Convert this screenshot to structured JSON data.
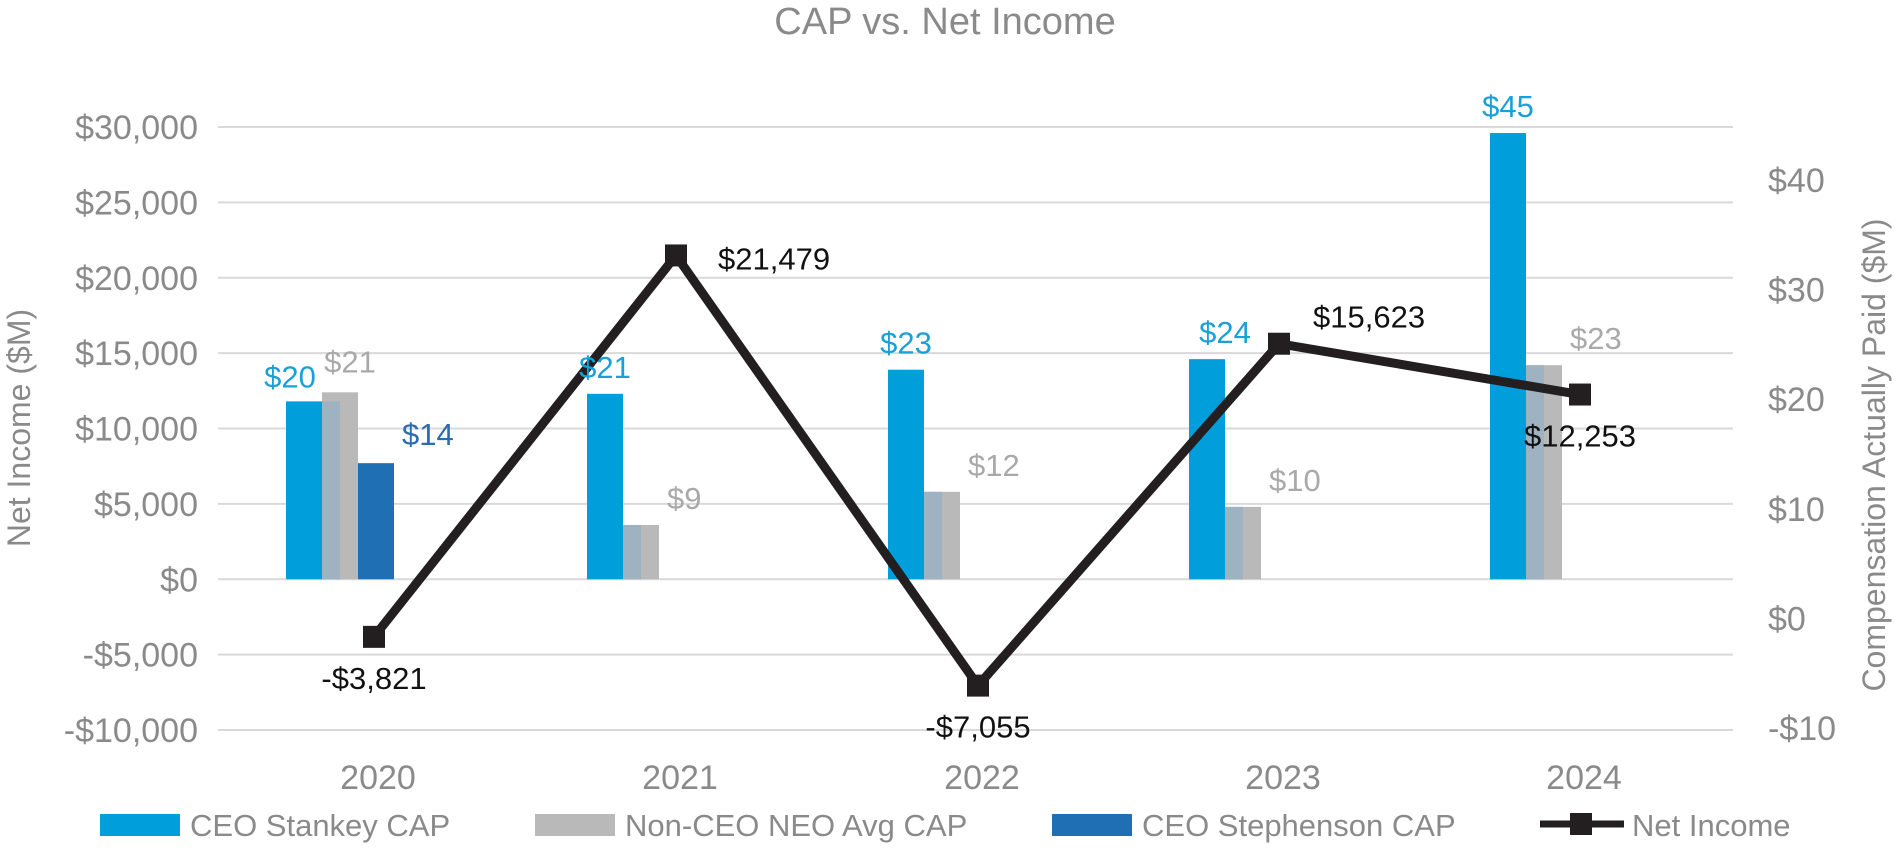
{
  "chart_data": {
    "type": "bar",
    "title": "CAP vs. Net Income",
    "categories": [
      "2020",
      "2021",
      "2022",
      "2023",
      "2024"
    ],
    "left_axis": {
      "label": "Net Income ($M)",
      "range": [
        -10000,
        30000
      ],
      "ticks": [
        30000,
        25000,
        20000,
        15000,
        10000,
        5000,
        0,
        -5000,
        -10000
      ],
      "tick_labels": [
        "$30,000",
        "$25,000",
        "$20,000",
        "$15,000",
        "$10,000",
        "$5,000",
        "$0",
        "-$5,000",
        "-$10,000"
      ]
    },
    "right_axis": {
      "label": "Compensation Actually Paid ($M)",
      "range": [
        -10,
        45
      ],
      "ticks": [
        40,
        30,
        20,
        10,
        0,
        -10
      ],
      "tick_labels": [
        "$40",
        "$30",
        "$20",
        "$10",
        "$0",
        "-$10"
      ]
    },
    "bar_scale_note": "bars share the left-axis baseline",
    "series": [
      {
        "name": "CEO Stankey CAP",
        "kind": "bar",
        "color": "#009fdb",
        "values": [
          20,
          21,
          23,
          24,
          45
        ],
        "plot_values": [
          11800,
          12300,
          13900,
          14600,
          29600
        ],
        "labels": [
          "$20",
          "$21",
          "$23",
          "$24",
          "$45"
        ]
      },
      {
        "name": "Non-CEO NEO Avg CAP",
        "kind": "bar",
        "color": "#b9b9b9",
        "overlay_color": "#9fb2c2",
        "values": [
          21,
          9,
          12,
          10,
          23
        ],
        "plot_values": [
          12400,
          3600,
          5800,
          4800,
          14200
        ],
        "labels": [
          "$21",
          "$9",
          "$12",
          "$10",
          "$23"
        ]
      },
      {
        "name": "CEO Stephenson CAP",
        "kind": "bar",
        "color": "#1f6fb5",
        "values": [
          14,
          null,
          null,
          null,
          null
        ],
        "plot_values": [
          7700,
          null,
          null,
          null,
          null
        ],
        "labels": [
          "$14",
          "",
          "",
          "",
          ""
        ]
      },
      {
        "name": "Net Income",
        "kind": "line",
        "color": "#231f20",
        "values": [
          -3821,
          21479,
          -7055,
          15623,
          12253
        ],
        "labels": [
          "-$3,821",
          "$21,479",
          "-$7,055",
          "$15,623",
          "$12,253"
        ]
      }
    ],
    "legend_position": "bottom"
  }
}
